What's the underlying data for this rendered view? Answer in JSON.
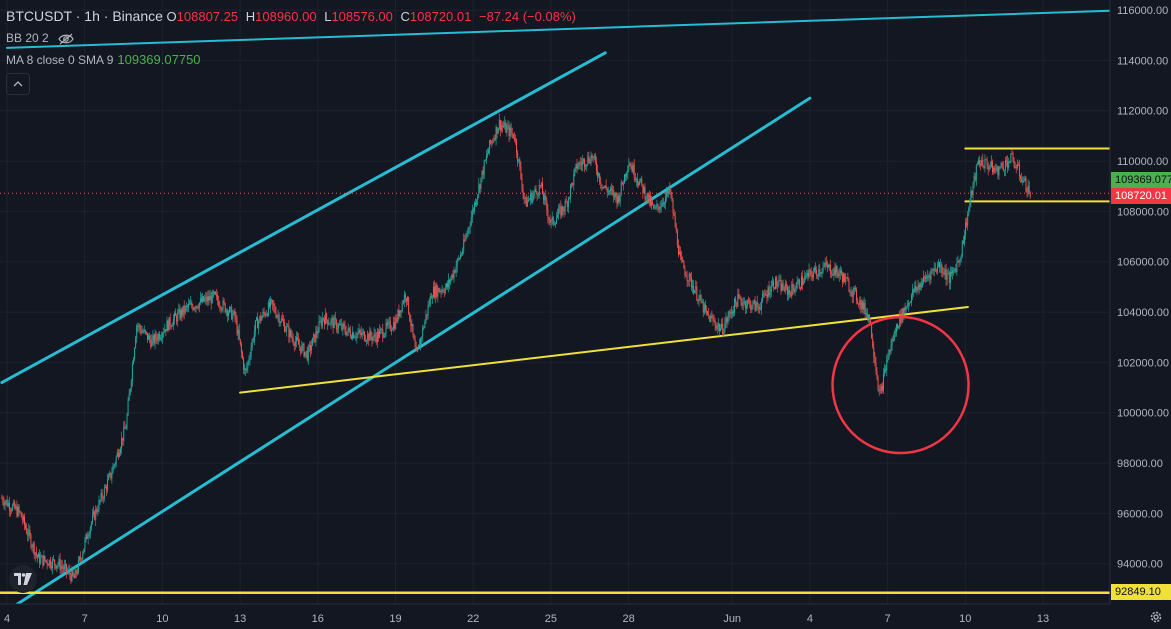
{
  "legend": {
    "symbol": "BTCUSDT · 1h · Binance",
    "o_label": "O",
    "o_value": "108807.25",
    "h_label": "H",
    "h_value": "108960.00",
    "l_label": "L",
    "l_value": "108576.00",
    "c_label": "C",
    "c_value": "108720.01",
    "change": "−87.24 (−0.08%)",
    "bb": "BB 20 2",
    "ma": "MA 8 close 0 SMA 9",
    "ma_value": "109369.07750"
  },
  "tags": {
    "ma": "109369.077",
    "last": "108720.01",
    "support": "92849.10"
  },
  "colors": {
    "background": "#131722",
    "grid": "#1e222d",
    "up": "#26a69a",
    "down": "#ef5350",
    "channel": "#26bcd1",
    "trendline": "#f0e03a",
    "circle": "#f23645",
    "ma_tag": "#4caf50",
    "last_tag": "#f23645"
  },
  "icons": [
    "eye-off-icon",
    "chevron-up-icon",
    "tradingview-logo-icon",
    "gear-icon"
  ],
  "chart_data": {
    "type": "candlestick",
    "symbol": "BTCUSDT",
    "interval": "1h",
    "y_ticks": [
      94000,
      96000,
      98000,
      100000,
      102000,
      104000,
      106000,
      108000,
      110000,
      112000,
      114000,
      116000
    ],
    "y_range": [
      92400,
      116400
    ],
    "x_ticks": [
      {
        "label": "4",
        "t": 0
      },
      {
        "label": "7",
        "t": 3
      },
      {
        "label": "10",
        "t": 6
      },
      {
        "label": "13",
        "t": 9
      },
      {
        "label": "16",
        "t": 12
      },
      {
        "label": "19",
        "t": 15
      },
      {
        "label": "22",
        "t": 18
      },
      {
        "label": "25",
        "t": 21
      },
      {
        "label": "28",
        "t": 24
      },
      {
        "label": "Jun",
        "t": 28
      },
      {
        "label": "4",
        "t": 31
      },
      {
        "label": "7",
        "t": 34
      },
      {
        "label": "10",
        "t": 37
      },
      {
        "label": "13",
        "t": 40
      }
    ],
    "price_path": [
      [
        -0.2,
        96600
      ],
      [
        0.5,
        96000
      ],
      [
        1.2,
        94200
      ],
      [
        2.0,
        94000
      ],
      [
        2.6,
        93400
      ],
      [
        3.2,
        95500
      ],
      [
        4.0,
        97500
      ],
      [
        4.6,
        99500
      ],
      [
        5.0,
        103500
      ],
      [
        5.6,
        102800
      ],
      [
        6.2,
        103500
      ],
      [
        7.0,
        104200
      ],
      [
        8.0,
        104600
      ],
      [
        8.8,
        103800
      ],
      [
        9.2,
        101500
      ],
      [
        9.6,
        103500
      ],
      [
        10.2,
        104300
      ],
      [
        11.0,
        103000
      ],
      [
        11.6,
        102300
      ],
      [
        12.2,
        103800
      ],
      [
        13.2,
        103200
      ],
      [
        14.2,
        103000
      ],
      [
        15.0,
        103600
      ],
      [
        15.4,
        104800
      ],
      [
        15.8,
        102200
      ],
      [
        16.4,
        104800
      ],
      [
        17.0,
        105000
      ],
      [
        17.6,
        106500
      ],
      [
        18.1,
        108500
      ],
      [
        18.6,
        110500
      ],
      [
        19.0,
        111500
      ],
      [
        19.6,
        111000
      ],
      [
        20.0,
        108300
      ],
      [
        20.6,
        109000
      ],
      [
        21.0,
        107500
      ],
      [
        21.6,
        108300
      ],
      [
        22.0,
        109800
      ],
      [
        22.6,
        110200
      ],
      [
        23.0,
        109000
      ],
      [
        23.6,
        108500
      ],
      [
        24.0,
        110000
      ],
      [
        24.6,
        108800
      ],
      [
        25.0,
        108000
      ],
      [
        25.6,
        108800
      ],
      [
        26.0,
        106000
      ],
      [
        26.6,
        104800
      ],
      [
        27.0,
        103900
      ],
      [
        27.6,
        103300
      ],
      [
        28.2,
        104500
      ],
      [
        29.0,
        104200
      ],
      [
        29.6,
        105200
      ],
      [
        30.2,
        104800
      ],
      [
        31.0,
        105500
      ],
      [
        31.6,
        105800
      ],
      [
        32.2,
        105500
      ],
      [
        32.8,
        104600
      ],
      [
        33.3,
        103800
      ],
      [
        33.7,
        100600
      ],
      [
        34.0,
        102200
      ],
      [
        34.4,
        103600
      ],
      [
        35.0,
        104800
      ],
      [
        35.6,
        105500
      ],
      [
        36.0,
        105900
      ],
      [
        36.4,
        105300
      ],
      [
        36.8,
        106200
      ],
      [
        37.2,
        108500
      ],
      [
        37.5,
        110000
      ],
      [
        37.8,
        109900
      ],
      [
        38.2,
        109600
      ],
      [
        38.8,
        110100
      ],
      [
        39.2,
        109300
      ],
      [
        39.5,
        108720
      ]
    ],
    "drawings": {
      "channel_upper": [
        [
          -0.2,
          101200
        ],
        [
          23.1,
          114300
        ]
      ],
      "channel_lower": [
        [
          0.4,
          92400
        ],
        [
          31.0,
          112500
        ]
      ],
      "channel_top": [
        [
          0.0,
          114500
        ],
        [
          43.3,
          116000
        ]
      ],
      "trendline": [
        [
          9.0,
          100800
        ],
        [
          37.1,
          104200
        ]
      ],
      "range_top": [
        [
          37.0,
          110500
        ],
        [
          42.6,
          110500
        ]
      ],
      "range_bottom": [
        [
          37.0,
          108400
        ],
        [
          42.6,
          108400
        ]
      ],
      "support": 92849.1,
      "highlight_circle": {
        "t": 34.5,
        "price": 101100
      }
    },
    "series": [
      {
        "name": "MA 8 close 0 SMA 9",
        "last": 109369.0775
      },
      {
        "name": "BTCUSDT",
        "last": 108720.01
      }
    ]
  }
}
